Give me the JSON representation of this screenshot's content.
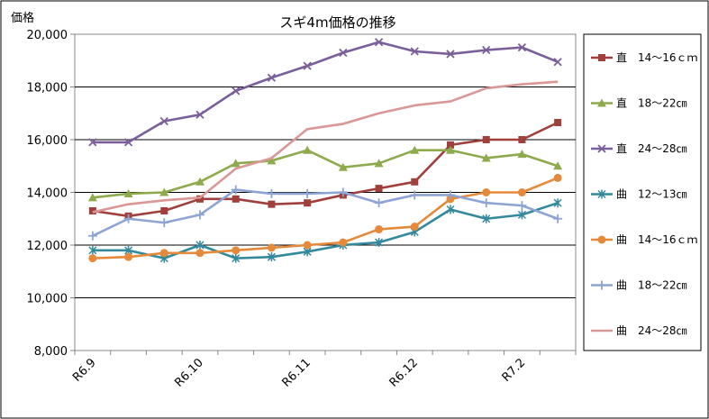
{
  "chart_data": {
    "type": "line",
    "title": "スギ4m価格の推移",
    "ylabel": "価格",
    "xlabel": "",
    "ylim": [
      8000,
      20000
    ],
    "ytick_values": [
      8000,
      10000,
      12000,
      14000,
      16000,
      18000,
      20000
    ],
    "ytick_labels": [
      "8,000",
      "10,000",
      "12,000",
      "14,000",
      "16,000",
      "18,000",
      "20,000"
    ],
    "x": [
      "R6.9",
      "",
      "",
      "R6.10",
      "",
      "",
      "R6.11",
      "",
      "",
      "R6.12",
      "",
      "",
      "R7.2",
      ""
    ],
    "xtick_labels": [
      {
        "index": 0,
        "label": "R6.9"
      },
      {
        "index": 3,
        "label": "R6.10"
      },
      {
        "index": 6,
        "label": "R6.11"
      },
      {
        "index": 9,
        "label": "R6.12"
      },
      {
        "index": 12,
        "label": "R7.2"
      }
    ],
    "grid": "horizontal",
    "legend_position": "right",
    "series": [
      {
        "name": "直　14～16ｃｍ",
        "color": "#a0403d",
        "marker": "square",
        "values": [
          13300,
          13100,
          13300,
          13750,
          13750,
          13550,
          13600,
          13900,
          14150,
          14400,
          15800,
          16000,
          16000,
          16650
        ]
      },
      {
        "name": "直　18～22㎝",
        "color": "#8daa4d",
        "marker": "triangle",
        "values": [
          13800,
          13950,
          14000,
          14400,
          15100,
          15200,
          15600,
          14950,
          15100,
          15600,
          15600,
          15300,
          15450,
          15000
        ]
      },
      {
        "name": "直　24～28㎝",
        "color": "#7a5f9b",
        "marker": "x",
        "values": [
          15900,
          15900,
          16700,
          16950,
          17850,
          18350,
          18800,
          19300,
          19700,
          19350,
          19250,
          19400,
          19500,
          18950
        ]
      },
      {
        "name": "曲　12～13㎝",
        "color": "#33899c",
        "marker": "star",
        "values": [
          11800,
          11800,
          11500,
          12000,
          11500,
          11550,
          11750,
          12000,
          12100,
          12500,
          13350,
          13000,
          13150,
          13600
        ]
      },
      {
        "name": "曲　14～16ｃｍ",
        "color": "#e5893a",
        "marker": "circle",
        "values": [
          11500,
          11550,
          11700,
          11700,
          11800,
          11900,
          12000,
          12100,
          12600,
          12700,
          13750,
          14000,
          14000,
          14550
        ]
      },
      {
        "name": "曲　18～22㎝",
        "color": "#8ea4d3",
        "marker": "plus",
        "values": [
          12350,
          13000,
          12850,
          13150,
          14100,
          13950,
          13950,
          14000,
          13600,
          13900,
          13900,
          13600,
          13500,
          13000
        ]
      },
      {
        "name": "曲　24～28㎝",
        "color": "#d99795",
        "marker": "none",
        "values": [
          13250,
          13550,
          13700,
          13800,
          14900,
          15300,
          16400,
          16600,
          17000,
          17300,
          17450,
          17950,
          18100,
          18200
        ]
      }
    ]
  }
}
